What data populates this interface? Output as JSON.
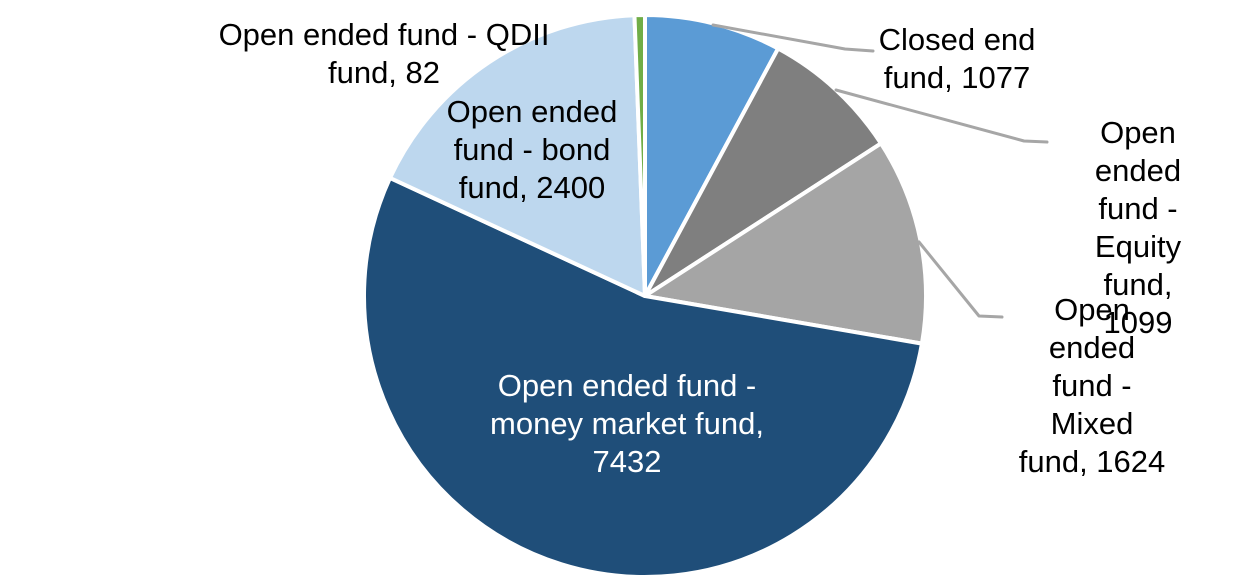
{
  "background_color": "#FFFFFF",
  "chart_data": {
    "type": "pie",
    "title": "",
    "total": 13714,
    "start_angle_deg": 0,
    "direction": "clockwise",
    "slice_border_color": "#FFFFFF",
    "leader_line_color": "#A6A6A6",
    "default_label_color": "#000000",
    "legend": "none",
    "segments": [
      {
        "name": "Closed end fund",
        "value": 1077,
        "color": "#5B9BD5",
        "label_lines": [
          "Closed end",
          "fund, 1077"
        ],
        "label_placement": "outside",
        "leader_line": true
      },
      {
        "name": "Open ended fund - Equity fund",
        "value": 1099,
        "color": "#7F7F7F",
        "label_lines": [
          "Open ended",
          "fund - Equity",
          "fund, 1099"
        ],
        "label_placement": "outside",
        "leader_line": true
      },
      {
        "name": "Open ended fund - Mixed fund",
        "value": 1624,
        "color": "#A5A5A5",
        "label_lines": [
          "Open ended",
          "fund - Mixed",
          "fund, 1624"
        ],
        "label_placement": "outside",
        "leader_line": true
      },
      {
        "name": "Open ended fund - money market fund",
        "value": 7432,
        "color": "#1F4E79",
        "label_lines": [
          "Open ended fund -",
          "money market fund,",
          "7432"
        ],
        "label_placement": "inside",
        "label_color": "#FFFFFF",
        "leader_line": false
      },
      {
        "name": "Open ended fund - bond fund",
        "value": 2400,
        "color": "#BDD7EE",
        "label_lines": [
          "Open ended",
          "fund - bond",
          "fund, 2400"
        ],
        "label_placement": "inside",
        "leader_line": false
      },
      {
        "name": "Open ended fund - QDII fund",
        "value": 82,
        "color": "#70AD47",
        "label_lines": [
          "Open ended fund - QDII",
          "fund, 82"
        ],
        "label_placement": "outside",
        "leader_line": false
      }
    ]
  }
}
